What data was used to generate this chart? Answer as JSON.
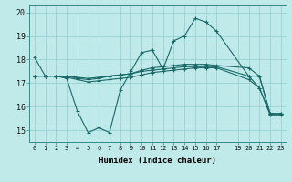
{
  "title": "",
  "xlabel": "Humidex (Indice chaleur)",
  "ylabel": "",
  "background_color": "#c0eaea",
  "line_color": "#1a6868",
  "grid_color": "#90cccc",
  "xlim": [
    -0.5,
    23.5
  ],
  "ylim": [
    14.5,
    20.3
  ],
  "xticks": [
    0,
    1,
    2,
    3,
    4,
    5,
    6,
    7,
    8,
    9,
    10,
    11,
    12,
    13,
    14,
    15,
    16,
    17,
    19,
    20,
    21,
    22,
    23
  ],
  "yticks": [
    15,
    16,
    17,
    18,
    19,
    20
  ],
  "lines": [
    {
      "x": [
        0,
        1,
        2,
        3,
        4,
        5,
        6,
        7,
        8,
        9,
        10,
        11,
        12,
        13,
        14,
        15,
        16,
        17,
        20,
        21,
        22,
        23
      ],
      "y": [
        18.1,
        17.3,
        17.3,
        17.2,
        15.8,
        14.9,
        15.1,
        14.9,
        16.7,
        17.5,
        18.3,
        18.4,
        17.6,
        18.8,
        19.0,
        19.75,
        19.6,
        19.2,
        17.3,
        16.8,
        15.7,
        15.7
      ]
    },
    {
      "x": [
        0,
        1,
        2,
        3,
        4,
        5,
        6,
        7,
        8,
        9,
        10,
        11,
        12,
        13,
        14,
        15,
        16,
        17,
        20,
        21,
        22,
        23
      ],
      "y": [
        17.3,
        17.3,
        17.3,
        17.3,
        17.2,
        17.15,
        17.2,
        17.3,
        17.35,
        17.4,
        17.5,
        17.55,
        17.6,
        17.65,
        17.7,
        17.7,
        17.7,
        17.7,
        17.3,
        17.3,
        15.7,
        15.7
      ]
    },
    {
      "x": [
        0,
        1,
        2,
        3,
        4,
        5,
        6,
        7,
        8,
        9,
        10,
        11,
        12,
        13,
        14,
        15,
        16,
        17,
        20,
        21,
        22,
        23
      ],
      "y": [
        17.3,
        17.3,
        17.3,
        17.3,
        17.25,
        17.2,
        17.25,
        17.3,
        17.35,
        17.4,
        17.55,
        17.65,
        17.7,
        17.75,
        17.8,
        17.8,
        17.8,
        17.75,
        17.65,
        17.3,
        15.7,
        15.7
      ]
    },
    {
      "x": [
        0,
        1,
        2,
        3,
        4,
        5,
        6,
        7,
        8,
        9,
        10,
        11,
        12,
        13,
        14,
        15,
        16,
        17,
        20,
        21,
        22,
        23
      ],
      "y": [
        17.3,
        17.3,
        17.3,
        17.25,
        17.15,
        17.05,
        17.1,
        17.15,
        17.2,
        17.25,
        17.35,
        17.45,
        17.5,
        17.55,
        17.6,
        17.65,
        17.65,
        17.65,
        17.15,
        16.8,
        15.65,
        15.65
      ]
    }
  ]
}
